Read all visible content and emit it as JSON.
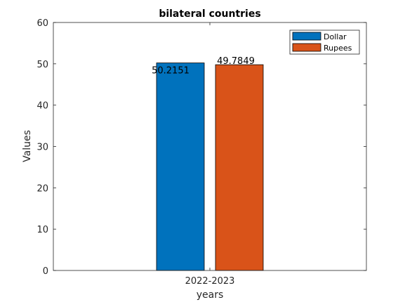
{
  "chart_data": {
    "type": "bar",
    "title": "bilateral countries",
    "xlabel": "years",
    "ylabel": "Values",
    "categories": [
      "2022-2023"
    ],
    "ylim": [
      0,
      60
    ],
    "yticks": [
      0,
      10,
      20,
      30,
      40,
      50,
      60
    ],
    "grid": false,
    "legend_position": "top-right",
    "series": [
      {
        "name": "Dollar",
        "values": [
          50.2151
        ],
        "color": "#0072BD",
        "data_labels": [
          "50.2151"
        ]
      },
      {
        "name": "Rupees",
        "values": [
          49.7849
        ],
        "color": "#D95319",
        "data_labels": [
          "49.7849"
        ]
      }
    ]
  }
}
